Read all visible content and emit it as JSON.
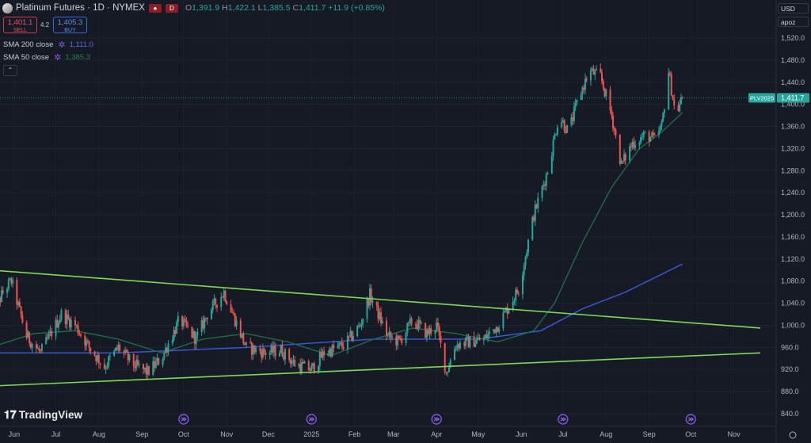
{
  "header": {
    "symbol_title": "Platinum Futures · 1D · NYMEX",
    "flag_label": "D",
    "ohlc_open_label": "O",
    "ohlc_open": "1,391.9",
    "ohlc_high_label": "H",
    "ohlc_high": "1,422.1",
    "ohlc_low_label": "L",
    "ohlc_low": "1,385.5",
    "ohlc_close_label": "C",
    "ohlc_close": "1,411.7",
    "ohlc_change": "+11.9 (+0.85%)"
  },
  "trade": {
    "sell_price": "1,401.1",
    "sell_label": "SELL",
    "spread": "4.2",
    "buy_price": "1,405.3",
    "buy_label": "BUY"
  },
  "indicators": [
    {
      "name": "SMA 200 close",
      "value": "1,111.0",
      "color": "#5b6bd9"
    },
    {
      "name": "SMA 50 close",
      "value": "1,385.3",
      "color": "#2a7a56"
    }
  ],
  "collapse_icon": "chevron-up-icon",
  "top_right": {
    "currency": "USD",
    "extra": "apoz"
  },
  "price_tag": {
    "symbol": "PLV2025",
    "value": "1,411.7",
    "color": "#26a69a"
  },
  "branding": {
    "logo_text": "TradingView"
  },
  "colors": {
    "up": "#26a69a",
    "down": "#ef5350",
    "trendline": "#7ed957",
    "sma200": "#3d5bd9",
    "sma50": "#1f6b4a",
    "background": "#161a25"
  },
  "chart_data": {
    "type": "candlestick",
    "y_ticks": [
      "1,520.0",
      "1,480.0",
      "1,440.0",
      "1,400.0",
      "1,360.0",
      "1,320.0",
      "1,280.0",
      "1,240.0",
      "1,200.0",
      "1,160.0",
      "1,120.0",
      "1,080.0",
      "1,040.0",
      "1,000.0",
      "960.0",
      "920.0",
      "880.0",
      "840.0"
    ],
    "ylim": [
      830,
      1540
    ],
    "x_labels": [
      "Jun",
      "Jul",
      "Aug",
      "Sep",
      "Oct",
      "Nov",
      "Dec",
      "2025",
      "Feb",
      "Mar",
      "Apr",
      "May",
      "Jun",
      "Jul",
      "Aug",
      "Sep",
      "Oct",
      "Nov"
    ],
    "x_range": [
      "2024-05-15",
      "2025-11-20"
    ],
    "close_path": [
      [
        "2024-05-15",
        1010
      ],
      [
        "2024-05-25",
        1065
      ],
      [
        "2024-05-30",
        1080
      ],
      [
        "2024-06-10",
        980
      ],
      [
        "2024-06-20",
        950
      ],
      [
        "2024-07-05",
        1020
      ],
      [
        "2024-07-15",
        1000
      ],
      [
        "2024-07-25",
        960
      ],
      [
        "2024-08-05",
        925
      ],
      [
        "2024-08-15",
        960
      ],
      [
        "2024-08-25",
        930
      ],
      [
        "2024-09-05",
        915
      ],
      [
        "2024-09-15",
        940
      ],
      [
        "2024-09-28",
        1010
      ],
      [
        "2024-10-10",
        975
      ],
      [
        "2024-10-18",
        1020
      ],
      [
        "2024-10-30",
        1060
      ],
      [
        "2024-11-15",
        960
      ],
      [
        "2024-11-30",
        950
      ],
      [
        "2024-12-10",
        955
      ],
      [
        "2024-12-20",
        930
      ],
      [
        "2025-01-01",
        920
      ],
      [
        "2025-01-10",
        950
      ],
      [
        "2025-01-25",
        965
      ],
      [
        "2025-02-05",
        1000
      ],
      [
        "2025-02-12",
        1055
      ],
      [
        "2025-02-25",
        980
      ],
      [
        "2025-03-05",
        970
      ],
      [
        "2025-03-15",
        1010
      ],
      [
        "2025-03-25",
        985
      ],
      [
        "2025-04-01",
        1000
      ],
      [
        "2025-04-08",
        915
      ],
      [
        "2025-04-15",
        965
      ],
      [
        "2025-04-25",
        970
      ],
      [
        "2025-05-05",
        975
      ],
      [
        "2025-05-15",
        1000
      ],
      [
        "2025-05-30",
        1065
      ],
      [
        "2025-06-10",
        1200
      ],
      [
        "2025-06-20",
        1280
      ],
      [
        "2025-06-28",
        1380
      ],
      [
        "2025-07-05",
        1350
      ],
      [
        "2025-07-12",
        1410
      ],
      [
        "2025-07-20",
        1460
      ],
      [
        "2025-07-28",
        1450
      ],
      [
        "2025-08-05",
        1380
      ],
      [
        "2025-08-12",
        1290
      ],
      [
        "2025-08-20",
        1330
      ],
      [
        "2025-08-30",
        1345
      ],
      [
        "2025-09-05",
        1335
      ],
      [
        "2025-09-10",
        1360
      ],
      [
        "2025-09-15",
        1460
      ],
      [
        "2025-09-20",
        1380
      ],
      [
        "2025-09-25",
        1412
      ]
    ],
    "series": [
      {
        "name": "SMA 200 close",
        "points": [
          [
            "2024-05-15",
            950
          ],
          [
            "2024-08-15",
            950
          ],
          [
            "2024-11-15",
            960
          ],
          [
            "2025-02-15",
            975
          ],
          [
            "2025-05-01",
            975
          ],
          [
            "2025-06-15",
            990
          ],
          [
            "2025-07-15",
            1030
          ],
          [
            "2025-08-15",
            1060
          ],
          [
            "2025-09-25",
            1111
          ]
        ]
      },
      {
        "name": "SMA 50 close",
        "points": [
          [
            "2024-05-15",
            960
          ],
          [
            "2024-06-15",
            985
          ],
          [
            "2024-07-15",
            990
          ],
          [
            "2024-08-15",
            975
          ],
          [
            "2024-09-15",
            950
          ],
          [
            "2024-10-15",
            975
          ],
          [
            "2024-11-15",
            985
          ],
          [
            "2024-12-15",
            970
          ],
          [
            "2025-01-15",
            945
          ],
          [
            "2025-02-15",
            975
          ],
          [
            "2025-03-15",
            995
          ],
          [
            "2025-04-15",
            985
          ],
          [
            "2025-05-15",
            970
          ],
          [
            "2025-06-10",
            990
          ],
          [
            "2025-06-25",
            1040
          ],
          [
            "2025-07-15",
            1150
          ],
          [
            "2025-08-05",
            1250
          ],
          [
            "2025-08-25",
            1320
          ],
          [
            "2025-09-10",
            1350
          ],
          [
            "2025-09-25",
            1385
          ]
        ]
      }
    ],
    "trendlines": [
      {
        "start": [
          "2024-05-15",
          1100
        ],
        "end": [
          "2025-11-20",
          995
        ]
      },
      {
        "start": [
          "2024-05-15",
          890
        ],
        "end": [
          "2025-11-20",
          950
        ]
      }
    ],
    "last_price": 1411.7,
    "grid": true
  }
}
